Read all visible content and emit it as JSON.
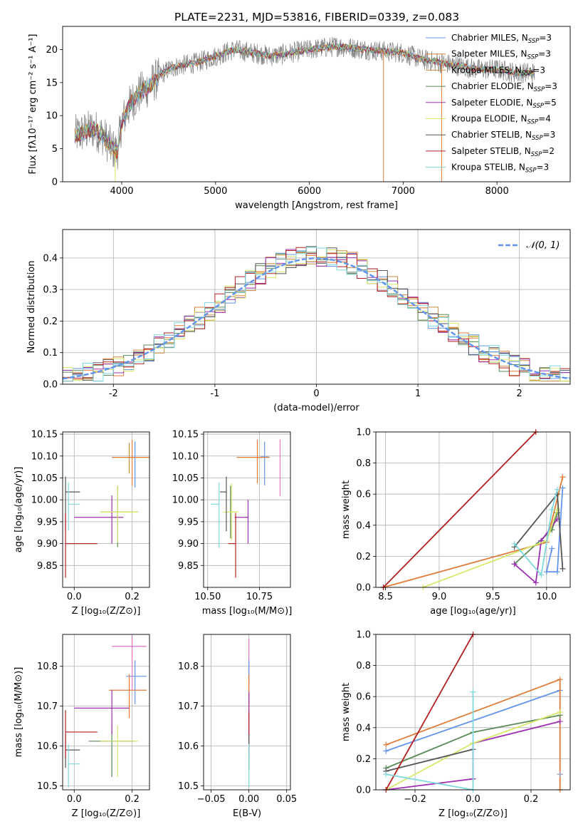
{
  "figure_title": "PLATE=2231, MJD=53816, FIBERID=0339, z=0.083",
  "model_colors": [
    "#6495ed",
    "#e07b39",
    "#c98a3c",
    "#5b8a5b",
    "#9b30b0",
    "#d7e86a",
    "#555555",
    "#b22222",
    "#7fd8dd"
  ],
  "chart_data": [
    {
      "id": "spectrum",
      "type": "line",
      "title": "PLATE=2231, MJD=53816, FIBERID=0339, z=0.083",
      "xlabel": "wavelength [Angstrom, rest frame]",
      "ylabel": "Flux [fλ10⁻¹⁷ erg cm⁻² s⁻¹ A⁻¹]",
      "xlim": [
        3370,
        8780
      ],
      "ylim": [
        0,
        23.5
      ],
      "xticks": [
        4000,
        5000,
        6000,
        7000,
        8000
      ],
      "yticks": [
        0,
        5,
        10,
        15,
        20
      ],
      "grid": false,
      "legend_position": "top-right",
      "data_color": "#808080",
      "continuum_x": [
        3500,
        3600,
        3700,
        3800,
        3900,
        3950,
        4000,
        4100,
        4200,
        4300,
        4400,
        4500,
        4600,
        4800,
        5000,
        5200,
        5400,
        5600,
        5800,
        6000,
        6300,
        6600,
        7000,
        7200,
        7400,
        7600,
        7800,
        8000,
        8200,
        8300,
        8400
      ],
      "continuum_y": [
        7,
        7.5,
        8,
        7,
        5,
        4.5,
        9,
        12,
        13.5,
        14.5,
        16,
        17,
        17.5,
        18,
        19,
        20,
        19.5,
        19,
        19.5,
        20,
        20.5,
        20,
        19.5,
        18.5,
        18,
        17.5,
        17,
        17,
        16.5,
        16.5,
        16.5
      ],
      "series": [
        {
          "name": "Chabrier MILES, N",
          "sub": "SSP",
          "suffix": "=3",
          "color": "#6495ed"
        },
        {
          "name": "Salpeter MILES, N",
          "sub": "SSP",
          "suffix": "=3",
          "color": "#e07b39"
        },
        {
          "name": "Kroupa MILES, N",
          "sub": "SSP",
          "suffix": "=3",
          "color": "#c98a3c"
        },
        {
          "name": "Chabrier ELODIE, N",
          "sub": "SSP",
          "suffix": "=3",
          "color": "#5b8a5b"
        },
        {
          "name": "Salpeter ELODIE, N",
          "sub": "SSP",
          "suffix": "=5",
          "color": "#9b30b0"
        },
        {
          "name": "Kroupa ELODIE, N",
          "sub": "SSP",
          "suffix": "=4",
          "color": "#d7e86a"
        },
        {
          "name": "Chabrier STELIB, N",
          "sub": "SSP",
          "suffix": "=3",
          "color": "#555555"
        },
        {
          "name": "Salpeter STELIB, N",
          "sub": "SSP",
          "suffix": "=2",
          "color": "#b22222"
        },
        {
          "name": "Kroupa STELIB, N",
          "sub": "SSP",
          "suffix": "=3",
          "color": "#7fd8dd"
        }
      ],
      "spikes": [
        {
          "x": 3930,
          "ymin": 0,
          "color": "#d7e86a"
        },
        {
          "x": 6790,
          "ymin": 0,
          "color": "#e07b39"
        },
        {
          "x": 7410,
          "ymin": 0,
          "color": "#e07b39"
        }
      ]
    },
    {
      "id": "residuals",
      "type": "histogram",
      "xlabel": "(data-model)/error",
      "ylabel": "Normed distribution",
      "xlim": [
        -2.5,
        2.5
      ],
      "ylim": [
        0,
        0.49
      ],
      "xticks": [
        -2,
        -1,
        0,
        1,
        2
      ],
      "yticks": [
        0.0,
        0.1,
        0.2,
        0.3,
        0.4
      ],
      "grid": true,
      "legend_position": "top-right",
      "reference_curve": {
        "label": "𝒩(0, 1)",
        "color": "#6495ed",
        "style": "dashed"
      },
      "bin_width": 0.1,
      "bin_start": -2.5,
      "series_colors": [
        "#6495ed",
        "#e07b39",
        "#c98a3c",
        "#5b8a5b",
        "#9b30b0",
        "#d7e86a",
        "#555555",
        "#b22222",
        "#7fd8dd"
      ]
    },
    {
      "id": "age-vs-Z",
      "type": "scatter",
      "xlabel": "Z [log₁₀(Z/Z⊙)]",
      "ylabel": "age  [log₁₀(age/yr)]",
      "xlim": [
        -0.04,
        0.26
      ],
      "ylim": [
        9.8,
        10.155
      ],
      "xticks": [
        0.0,
        0.2
      ],
      "xtick_labels": [
        "0.0",
        "0.2"
      ],
      "yticks": [
        9.85,
        9.9,
        9.95,
        10.0,
        10.05,
        10.1,
        10.15
      ],
      "ytick_labels": [
        "9.85",
        "9.90",
        "9.95",
        "10.00",
        "10.05",
        "10.10",
        "10.15"
      ],
      "grid": true,
      "points": [
        {
          "x": 0.21,
          "y": 10.098,
          "xerr": [
            0.0,
            0.0
          ],
          "yerr": [
            0.07,
            0.035
          ],
          "color": "#6495ed"
        },
        {
          "x": 0.2,
          "y": 10.097,
          "xerr": [
            0.07,
            0.06
          ],
          "yerr": [
            0.065,
            0.04
          ],
          "color": "#e07b39"
        },
        {
          "x": 0.19,
          "y": 10.1,
          "xerr": [
            0.0,
            0.0
          ],
          "yerr": [
            0.04,
            0.03
          ],
          "color": "#c98a3c"
        },
        {
          "x": 0.15,
          "y": 9.972,
          "xerr": [
            0.06,
            0.07
          ],
          "yerr": [
            0.08,
            0.06
          ],
          "color": "#5b8a5b"
        },
        {
          "x": 0.13,
          "y": 9.96,
          "xerr": [
            0.13,
            0.04
          ],
          "yerr": [
            0.06,
            0.05
          ],
          "color": "#9b30b0"
        },
        {
          "x": 0.15,
          "y": 9.972,
          "xerr": [
            0.06,
            0.07
          ],
          "yerr": [
            0.07,
            0.06
          ],
          "color": "#d7e86a"
        },
        {
          "x": -0.03,
          "y": 10.018,
          "xerr": [
            0.0,
            0.05
          ],
          "yerr": [
            0.09,
            0.035
          ],
          "color": "#555555"
        },
        {
          "x": -0.03,
          "y": 9.9,
          "xerr": [
            0.0,
            0.11
          ],
          "yerr": [
            0.078,
            0.07
          ],
          "color": "#b22222"
        },
        {
          "x": -0.02,
          "y": 9.99,
          "xerr": [
            0.0,
            0.04
          ],
          "yerr": [
            0.06,
            0.05
          ],
          "color": "#7fd8dd"
        }
      ]
    },
    {
      "id": "age-vs-mass",
      "type": "scatter",
      "xlabel": "mass [log₁₀(M/M⊙)]",
      "ylabel": "",
      "xlim": [
        10.48,
        10.9
      ],
      "ylim": [
        9.8,
        10.155
      ],
      "xticks": [
        10.5,
        10.75
      ],
      "xtick_labels": [
        "10.50",
        "10.75"
      ],
      "yticks": [
        9.85,
        9.9,
        9.95,
        10.0,
        10.05,
        10.1,
        10.15
      ],
      "ytick_labels": [
        "9.85",
        "9.90",
        "9.95",
        "10.00",
        "10.05",
        "10.10",
        "10.15"
      ],
      "grid": true,
      "points": [
        {
          "x": 10.775,
          "y": 10.098,
          "xerr": [
            0.02,
            0.02
          ],
          "yerr": [
            0.065,
            0.035
          ],
          "color": "#6495ed"
        },
        {
          "x": 10.74,
          "y": 10.097,
          "xerr": [
            0.1,
            0.06
          ],
          "yerr": [
            0.06,
            0.04
          ],
          "color": "#e07b39"
        },
        {
          "x": 10.85,
          "y": 10.098,
          "xerr": [
            0.0,
            0.0
          ],
          "yerr": [
            0.09,
            0.04
          ],
          "color": "#e377c2"
        },
        {
          "x": 10.61,
          "y": 9.972,
          "xerr": [
            0.0,
            0.0
          ],
          "yerr": [
            0.06,
            0.06
          ],
          "color": "#5b8a5b"
        },
        {
          "x": 10.695,
          "y": 9.96,
          "xerr": [
            0.065,
            0.0
          ],
          "yerr": [
            0.06,
            0.04
          ],
          "color": "#9b30b0"
        },
        {
          "x": 10.615,
          "y": 9.972,
          "xerr": [
            0.04,
            0.03
          ],
          "yerr": [
            0.065,
            0.065
          ],
          "color": "#d7e86a"
        },
        {
          "x": 10.59,
          "y": 10.018,
          "xerr": [
            0.03,
            0.0
          ],
          "yerr": [
            0.09,
            0.035
          ],
          "color": "#555555"
        },
        {
          "x": 10.635,
          "y": 9.9,
          "xerr": [
            0.035,
            0.0
          ],
          "yerr": [
            0.078,
            0.07
          ],
          "color": "#b22222"
        },
        {
          "x": 10.555,
          "y": 9.99,
          "xerr": [
            0.04,
            0.0
          ],
          "yerr": [
            0.1,
            0.05
          ],
          "color": "#7fd8dd"
        }
      ]
    },
    {
      "id": "massweight-vs-age",
      "type": "line",
      "xlabel": "age  [log₁₀(age/yr)]",
      "ylabel": "mass weight",
      "xlim": [
        8.41,
        10.22
      ],
      "ylim": [
        0,
        1.0
      ],
      "xticks": [
        8.5,
        9.0,
        9.5,
        10.0
      ],
      "xtick_labels": [
        "8.5",
        "9.0",
        "9.5",
        "10.0"
      ],
      "yticks": [
        0.0,
        0.2,
        0.4,
        0.6,
        0.8,
        1.0
      ],
      "ytick_labels": [
        "0.0",
        "0.2",
        "0.4",
        "0.6",
        "0.8",
        "1.0"
      ],
      "grid": true,
      "series": [
        {
          "color": "#6495ed",
          "x": [
            10.05,
            10.0,
            10.1,
            10.15
          ],
          "y": [
            0.25,
            0.1,
            0.1,
            0.64
          ]
        },
        {
          "color": "#e07b39",
          "x": [
            8.48,
            10.0,
            10.15
          ],
          "y": [
            0.0,
            0.29,
            0.71
          ]
        },
        {
          "color": "#5b8a5b",
          "x": [
            9.7,
            10.05,
            10.1
          ],
          "y": [
            0.15,
            0.37,
            0.48
          ]
        },
        {
          "color": "#9b30b0",
          "x": [
            9.7,
            9.9,
            9.95,
            10.1
          ],
          "y": [
            0.15,
            0.03,
            0.3,
            0.44
          ]
        },
        {
          "color": "#d7e86a",
          "x": [
            8.85,
            10.0,
            10.1
          ],
          "y": [
            0.0,
            0.3,
            0.5
          ]
        },
        {
          "color": "#555555",
          "x": [
            10.15,
            10.1,
            9.7
          ],
          "y": [
            0.12,
            0.6,
            0.26
          ]
        },
        {
          "color": "#b22222",
          "x": [
            8.48,
            9.9
          ],
          "y": [
            0.0,
            1.0
          ]
        },
        {
          "color": "#7fd8dd",
          "x": [
            9.7,
            9.95,
            10.05,
            10.1
          ],
          "y": [
            0.28,
            0.08,
            0.5,
            0.63
          ]
        }
      ]
    },
    {
      "id": "mass-vs-Z",
      "type": "scatter",
      "xlabel": "Z [log₁₀(Z/Z⊙)]",
      "ylabel": "mass [log₁₀(M/M⊙)]",
      "xlim": [
        -0.04,
        0.26
      ],
      "ylim": [
        10.49,
        10.88
      ],
      "xticks": [
        0.0,
        0.2
      ],
      "xtick_labels": [
        "0.0",
        "0.2"
      ],
      "yticks": [
        10.5,
        10.6,
        10.7,
        10.8
      ],
      "ytick_labels": [
        "10.5",
        "10.6",
        "10.7",
        "10.8"
      ],
      "grid": true,
      "points": [
        {
          "x": 0.21,
          "y": 10.775,
          "xerr": [
            0.03,
            0.04
          ],
          "yerr": [
            0.07,
            0.04
          ],
          "color": "#6495ed"
        },
        {
          "x": 0.19,
          "y": 10.74,
          "xerr": [
            0.07,
            0.06
          ],
          "yerr": [
            0.07,
            0.04
          ],
          "color": "#e07b39"
        },
        {
          "x": 0.2,
          "y": 10.85,
          "xerr": [
            0.07,
            0.05
          ],
          "yerr": [
            0.11,
            0.03
          ],
          "color": "#e377c2"
        },
        {
          "x": 0.13,
          "y": 10.612,
          "xerr": [
            0.08,
            0.08
          ],
          "yerr": [
            0.09,
            0.04
          ],
          "color": "#5b8a5b"
        },
        {
          "x": 0.13,
          "y": 10.695,
          "xerr": [
            0.13,
            0.06
          ],
          "yerr": [
            0.065,
            0.045
          ],
          "color": "#9b30b0"
        },
        {
          "x": 0.15,
          "y": 10.612,
          "xerr": [
            0.06,
            0.07
          ],
          "yerr": [
            0.09,
            0.04
          ],
          "color": "#d7e86a"
        },
        {
          "x": -0.03,
          "y": 10.59,
          "xerr": [
            0.0,
            0.05
          ],
          "yerr": [
            0.045,
            0.04
          ],
          "color": "#555555"
        },
        {
          "x": -0.03,
          "y": 10.635,
          "xerr": [
            0.0,
            0.11
          ],
          "yerr": [
            0.065,
            0.055
          ],
          "color": "#b22222"
        },
        {
          "x": -0.02,
          "y": 10.555,
          "xerr": [
            0.0,
            0.04
          ],
          "yerr": [
            0.06,
            0.05
          ],
          "color": "#7fd8dd"
        }
      ]
    },
    {
      "id": "mass-vs-EBV",
      "type": "scatter",
      "xlabel": "E(B-V)",
      "ylabel": "",
      "xlim": [
        -0.06,
        0.055
      ],
      "ylim": [
        10.49,
        10.88
      ],
      "xticks": [
        -0.05,
        0.0,
        0.05
      ],
      "xtick_labels": [
        "−0.05",
        "0.00",
        "0.05"
      ],
      "yticks": [
        10.5,
        10.6,
        10.7,
        10.8
      ],
      "ytick_labels": [
        "10.5",
        "10.6",
        "10.7",
        "10.8"
      ],
      "grid": true,
      "points": [
        {
          "x": 0.0,
          "y": 10.85,
          "xerr": [
            0.0,
            0.0
          ],
          "yerr": [
            0.1,
            0.02
          ],
          "color": "#e377c2"
        },
        {
          "x": 0.0,
          "y": 10.775,
          "xerr": [
            0.0,
            0.0
          ],
          "yerr": [
            0.07,
            0.04
          ],
          "color": "#6495ed"
        },
        {
          "x": 0.0,
          "y": 10.74,
          "xerr": [
            0.0,
            0.0
          ],
          "yerr": [
            0.07,
            0.04
          ],
          "color": "#e07b39"
        },
        {
          "x": 0.0,
          "y": 10.695,
          "xerr": [
            0.0,
            0.0
          ],
          "yerr": [
            0.065,
            0.04
          ],
          "color": "#9b30b0"
        },
        {
          "x": 0.0,
          "y": 10.635,
          "xerr": [
            0.0,
            0.0
          ],
          "yerr": [
            0.06,
            0.05
          ],
          "color": "#b22222"
        },
        {
          "x": 0.0,
          "y": 10.59,
          "xerr": [
            0.0,
            0.0
          ],
          "yerr": [
            0.05,
            0.04
          ],
          "color": "#555555"
        },
        {
          "x": 0.0,
          "y": 10.555,
          "xerr": [
            0.0,
            0.0
          ],
          "yerr": [
            0.06,
            0.05
          ],
          "color": "#7fd8dd"
        }
      ]
    },
    {
      "id": "massweight-vs-Z",
      "type": "line",
      "xlabel": "Z [log₁₀(Z/Z⊙)]",
      "ylabel": "mass weight",
      "xlim": [
        -0.335,
        0.335
      ],
      "ylim": [
        0,
        1.0
      ],
      "xticks": [
        -0.2,
        0.0,
        0.2
      ],
      "xtick_labels": [
        "−0.2",
        "0.0",
        "0.2"
      ],
      "yticks": [
        0.0,
        0.2,
        0.4,
        0.6,
        0.8,
        1.0
      ],
      "ytick_labels": [
        "0.0",
        "0.2",
        "0.4",
        "0.6",
        "0.8",
        "1.0"
      ],
      "grid": true,
      "series": [
        {
          "color": "#6495ed",
          "x": [
            -0.3,
            0.3
          ],
          "y": [
            0.25,
            0.64
          ]
        },
        {
          "color": "#e07b39",
          "x": [
            -0.3,
            0.3,
            0.3
          ],
          "y": [
            0.29,
            0.71,
            0.0
          ]
        },
        {
          "color": "#5b8a5b",
          "x": [
            -0.3,
            0.0,
            0.3
          ],
          "y": [
            0.14,
            0.37,
            0.48
          ]
        },
        {
          "color": "#9b30b0",
          "x": [
            -0.3,
            0.0,
            0.0,
            0.3
          ],
          "y": [
            0.0,
            0.07,
            0.3,
            0.44
          ]
        },
        {
          "color": "#d7e86a",
          "x": [
            -0.3,
            0.0,
            0.3
          ],
          "y": [
            0.0,
            0.3,
            0.5
          ]
        },
        {
          "color": "#555555",
          "x": [
            -0.3,
            0.0
          ],
          "y": [
            0.12,
            0.26
          ]
        },
        {
          "color": "#b22222",
          "x": [
            -0.3,
            0.0
          ],
          "y": [
            0.0,
            1.0
          ]
        },
        {
          "color": "#7fd8dd",
          "x": [
            -0.3,
            0.0,
            0.0
          ],
          "y": [
            0.1,
            0.0,
            0.63
          ]
        },
        {
          "color": "#a0a0c0",
          "x": [
            0.3,
            0.3
          ],
          "y": [
            0.1,
            0.1
          ]
        }
      ]
    }
  ]
}
